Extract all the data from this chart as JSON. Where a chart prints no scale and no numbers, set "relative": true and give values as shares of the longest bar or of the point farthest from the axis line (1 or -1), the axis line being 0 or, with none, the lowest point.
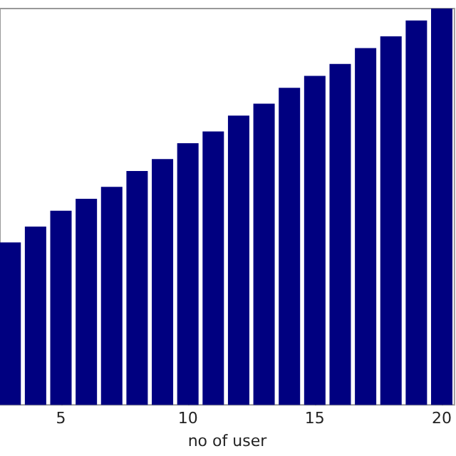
{
  "chart_data": {
    "type": "bar",
    "xlabel": "no of user",
    "x": [
      3,
      4,
      5,
      6,
      7,
      8,
      9,
      10,
      11,
      12,
      13,
      14,
      15,
      16,
      17,
      18,
      19,
      20
    ],
    "values": [
      0.41,
      0.45,
      0.49,
      0.52,
      0.55,
      0.59,
      0.62,
      0.66,
      0.69,
      0.73,
      0.76,
      0.8,
      0.83,
      0.86,
      0.9,
      0.93,
      0.97,
      1
    ],
    "color": "#000080",
    "relative": true,
    "xlim": [
      2.6,
      20.5
    ],
    "xticks": [
      5,
      10,
      15,
      20
    ],
    "grid": false
  }
}
